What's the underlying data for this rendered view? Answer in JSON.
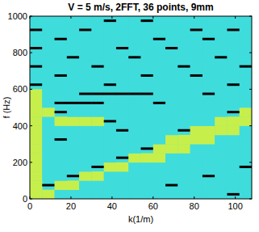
{
  "chart_data": {
    "type": "heatmap",
    "title": "V = 5 m/s, 2FFT, 36 points, 9mm",
    "xlabel": "k(1/m)",
    "ylabel": "f (Hz)",
    "x": [
      3,
      9,
      15,
      21,
      27,
      33,
      39,
      45,
      51,
      57,
      63,
      69,
      75,
      81,
      87,
      93,
      99,
      105
    ],
    "y": [
      25,
      75,
      125,
      175,
      225,
      275,
      325,
      375,
      425,
      475,
      525,
      575,
      625,
      675,
      725,
      775,
      825,
      875,
      925,
      975
    ],
    "cells": [
      [
        2,
        2,
        0,
        0,
        0,
        0,
        0,
        0,
        0,
        0,
        0,
        0,
        0,
        0,
        0,
        0,
        1,
        0
      ],
      [
        2,
        1,
        2,
        2,
        0,
        0,
        0,
        0,
        0,
        0,
        0,
        1,
        0,
        0,
        0,
        0,
        0,
        0
      ],
      [
        2,
        0,
        0,
        1,
        2,
        2,
        0,
        0,
        0,
        0,
        0,
        0,
        0,
        0,
        1,
        0,
        0,
        0
      ],
      [
        2,
        0,
        0,
        0,
        0,
        1,
        2,
        2,
        0,
        0,
        0,
        0,
        0,
        0,
        0,
        0,
        0,
        1
      ],
      [
        2,
        0,
        0,
        0,
        0,
        0,
        0,
        1,
        2,
        2,
        2,
        0,
        0,
        0,
        0,
        0,
        0,
        0
      ],
      [
        2,
        0,
        0,
        0,
        0,
        0,
        0,
        0,
        0,
        1,
        2,
        2,
        2,
        0,
        0,
        0,
        0,
        0
      ],
      [
        2,
        0,
        1,
        0,
        0,
        0,
        0,
        0,
        0,
        0,
        0,
        2,
        2,
        2,
        2,
        0,
        0,
        0
      ],
      [
        2,
        0,
        0,
        0,
        0,
        0,
        0,
        1,
        0,
        0,
        0,
        0,
        1,
        2,
        2,
        2,
        2,
        0
      ],
      [
        2,
        0,
        2,
        2,
        2,
        2,
        1,
        0,
        0,
        0,
        0,
        0,
        0,
        0,
        0,
        2,
        2,
        2
      ],
      [
        2,
        2,
        1,
        0,
        0,
        0,
        0,
        0,
        0,
        0,
        0,
        0,
        0,
        0,
        0,
        0,
        1,
        2
      ],
      [
        2,
        0,
        1,
        1,
        1,
        1,
        0,
        0,
        0,
        0,
        1,
        0,
        0,
        0,
        0,
        0,
        0,
        0
      ],
      [
        2,
        0,
        0,
        0,
        1,
        1,
        1,
        1,
        1,
        1,
        0,
        0,
        0,
        0,
        1,
        0,
        0,
        0
      ],
      [
        1,
        0,
        0,
        0,
        0,
        0,
        1,
        0,
        0,
        0,
        0,
        0,
        0,
        0,
        0,
        0,
        1,
        0
      ],
      [
        0,
        0,
        1,
        0,
        0,
        0,
        0,
        0,
        0,
        1,
        0,
        0,
        0,
        1,
        0,
        0,
        0,
        0
      ],
      [
        1,
        0,
        0,
        0,
        0,
        1,
        0,
        0,
        0,
        0,
        0,
        0,
        1,
        0,
        0,
        0,
        0,
        1
      ],
      [
        0,
        0,
        0,
        1,
        0,
        0,
        0,
        0,
        1,
        0,
        0,
        0,
        0,
        0,
        0,
        1,
        0,
        0
      ],
      [
        1,
        0,
        0,
        0,
        0,
        0,
        0,
        1,
        0,
        0,
        0,
        1,
        0,
        0,
        0,
        0,
        0,
        0
      ],
      [
        0,
        0,
        1,
        0,
        0,
        0,
        0,
        0,
        0,
        0,
        1,
        0,
        0,
        0,
        1,
        0,
        0,
        0
      ],
      [
        1,
        0,
        0,
        0,
        1,
        0,
        0,
        0,
        0,
        0,
        0,
        0,
        0,
        1,
        0,
        0,
        1,
        0
      ],
      [
        0,
        0,
        0,
        0,
        0,
        0,
        1,
        0,
        0,
        1,
        0,
        0,
        0,
        0,
        0,
        0,
        0,
        0
      ]
    ],
    "colors": [
      "#3fdcdc",
      "#000000",
      "#c6ef4c"
    ],
    "xlim": [
      0,
      108
    ],
    "ylim": [
      0,
      1000
    ],
    "xticks": [
      0,
      20,
      40,
      60,
      80,
      100
    ],
    "yticks": [
      0,
      200,
      400,
      600,
      800,
      1000
    ]
  }
}
